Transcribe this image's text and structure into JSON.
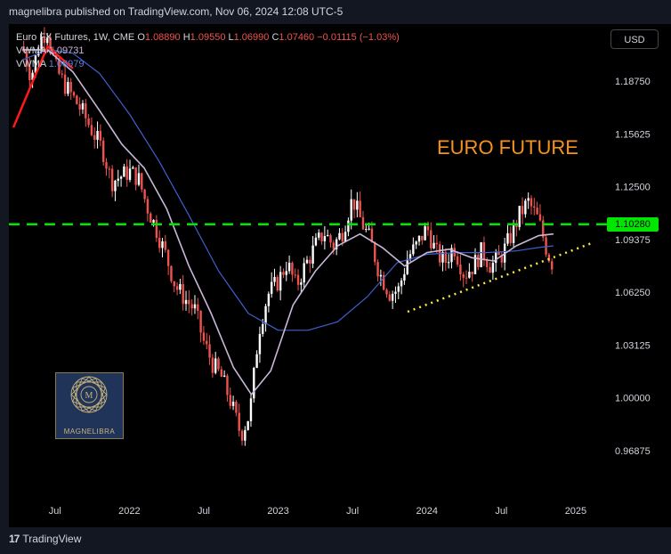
{
  "header": {
    "published": "magnelibra published on TradingView.com, Nov 06, 2024 12:08 UTC-5"
  },
  "legend": {
    "symbol": "Euro FX Futures, 1W, CME",
    "o_label": "O",
    "o": "1.08890",
    "h_label": "H",
    "h": "1.09550",
    "l_label": "L",
    "l": "1.06990",
    "c_label": "C",
    "c": "1.07460",
    "chg": "−0.01115 (−1.03%)",
    "vwma1_label": "VWMA",
    "vwma1_value": "1.09731",
    "vwma2_label": "VWMA",
    "vwma2_value": "1.08979"
  },
  "currency_button": "USD",
  "annotation": "EURO FUTURE",
  "price_marker": "1.10280",
  "watermark": {
    "text": "MAGNELIBRA"
  },
  "footer": {
    "brand": "TradingView"
  },
  "chart_data": {
    "type": "candlestick",
    "y_axis_labels": [
      "1.18750",
      "1.15625",
      "1.12500",
      "1.09375",
      "1.06250",
      "1.03125",
      "1.00000",
      "0.96875"
    ],
    "x_axis_labels": [
      "Jul",
      "2022",
      "Jul",
      "2023",
      "Jul",
      "2024",
      "Jul",
      "2025"
    ],
    "ylim": [
      0.955,
      1.225
    ],
    "horizontal_level": 1.1028,
    "colors": {
      "up": "#ffffff",
      "down": "#ef5350",
      "level": "#00e600",
      "trend": "#ffeb3b",
      "vwma_fast": "#c9b7d9",
      "vwma_slow": "#3f5fcf",
      "red_line": "#ff1a1a"
    },
    "close_path": [
      [
        2021.28,
        1.208
      ],
      [
        2021.34,
        1.19
      ],
      [
        2021.4,
        1.212
      ],
      [
        2021.45,
        1.218
      ],
      [
        2021.5,
        1.196
      ],
      [
        2021.56,
        1.186
      ],
      [
        2021.62,
        1.178
      ],
      [
        2021.68,
        1.17
      ],
      [
        2021.75,
        1.158
      ],
      [
        2021.82,
        1.147
      ],
      [
        2021.88,
        1.128
      ],
      [
        2021.94,
        1.131
      ],
      [
        2022.0,
        1.134
      ],
      [
        2022.06,
        1.13
      ],
      [
        2022.12,
        1.113
      ],
      [
        2022.18,
        1.1
      ],
      [
        2022.25,
        1.083
      ],
      [
        2022.31,
        1.066
      ],
      [
        2022.38,
        1.058
      ],
      [
        2022.44,
        1.052
      ],
      [
        2022.5,
        1.033
      ],
      [
        2022.56,
        1.02
      ],
      [
        2022.62,
        1.012
      ],
      [
        2022.68,
        0.998
      ],
      [
        2022.75,
        0.978
      ],
      [
        2022.81,
        0.991
      ],
      [
        2022.87,
        1.04
      ],
      [
        2022.93,
        1.061
      ],
      [
        2023.0,
        1.069
      ],
      [
        2023.06,
        1.08
      ],
      [
        2023.12,
        1.066
      ],
      [
        2023.18,
        1.078
      ],
      [
        2023.25,
        1.09
      ],
      [
        2023.31,
        1.098
      ],
      [
        2023.37,
        1.09
      ],
      [
        2023.43,
        1.098
      ],
      [
        2023.5,
        1.118
      ],
      [
        2023.56,
        1.104
      ],
      [
        2023.62,
        1.093
      ],
      [
        2023.68,
        1.074
      ],
      [
        2023.75,
        1.062
      ],
      [
        2023.81,
        1.064
      ],
      [
        2023.87,
        1.083
      ],
      [
        2023.93,
        1.09
      ],
      [
        2024.0,
        1.101
      ],
      [
        2024.06,
        1.086
      ],
      [
        2024.12,
        1.08
      ],
      [
        2024.18,
        1.09
      ],
      [
        2024.25,
        1.073
      ],
      [
        2024.31,
        1.078
      ],
      [
        2024.37,
        1.087
      ],
      [
        2024.43,
        1.078
      ],
      [
        2024.5,
        1.084
      ],
      [
        2024.56,
        1.095
      ],
      [
        2024.62,
        1.108
      ],
      [
        2024.68,
        1.116
      ],
      [
        2024.75,
        1.105
      ],
      [
        2024.81,
        1.086
      ],
      [
        2024.85,
        1.078
      ]
    ],
    "vwma_fast": [
      [
        2021.28,
        1.206
      ],
      [
        2021.45,
        1.206
      ],
      [
        2021.62,
        1.193
      ],
      [
        2021.8,
        1.17
      ],
      [
        2021.95,
        1.15
      ],
      [
        2022.1,
        1.136
      ],
      [
        2022.25,
        1.112
      ],
      [
        2022.4,
        1.078
      ],
      [
        2022.55,
        1.05
      ],
      [
        2022.7,
        1.018
      ],
      [
        2022.82,
        1.002
      ],
      [
        2022.95,
        1.016
      ],
      [
        2023.1,
        1.055
      ],
      [
        2023.25,
        1.075
      ],
      [
        2023.4,
        1.09
      ],
      [
        2023.55,
        1.097
      ],
      [
        2023.7,
        1.089
      ],
      [
        2023.85,
        1.078
      ],
      [
        2024.0,
        1.086
      ],
      [
        2024.15,
        1.088
      ],
      [
        2024.3,
        1.083
      ],
      [
        2024.45,
        1.081
      ],
      [
        2024.6,
        1.09
      ],
      [
        2024.75,
        1.096
      ],
      [
        2024.85,
        1.097
      ]
    ],
    "vwma_slow": [
      [
        2021.28,
        1.2
      ],
      [
        2021.45,
        1.206
      ],
      [
        2021.62,
        1.204
      ],
      [
        2021.8,
        1.192
      ],
      [
        2022.0,
        1.168
      ],
      [
        2022.2,
        1.14
      ],
      [
        2022.4,
        1.108
      ],
      [
        2022.6,
        1.075
      ],
      [
        2022.8,
        1.05
      ],
      [
        2023.0,
        1.04
      ],
      [
        2023.2,
        1.04
      ],
      [
        2023.4,
        1.045
      ],
      [
        2023.6,
        1.06
      ],
      [
        2023.8,
        1.08
      ],
      [
        2024.0,
        1.085
      ],
      [
        2024.2,
        1.086
      ],
      [
        2024.4,
        1.086
      ],
      [
        2024.6,
        1.087
      ],
      [
        2024.75,
        1.089
      ],
      [
        2024.85,
        1.09
      ]
    ],
    "trendlines": {
      "rising_support": [
        [
          2023.87,
          1.051
        ],
        [
          2025.12,
          1.092
        ]
      ],
      "red": [
        [
          2021.22,
          1.16
        ],
        [
          2021.45,
          1.208
        ],
        [
          2021.62,
          1.195
        ]
      ]
    }
  }
}
